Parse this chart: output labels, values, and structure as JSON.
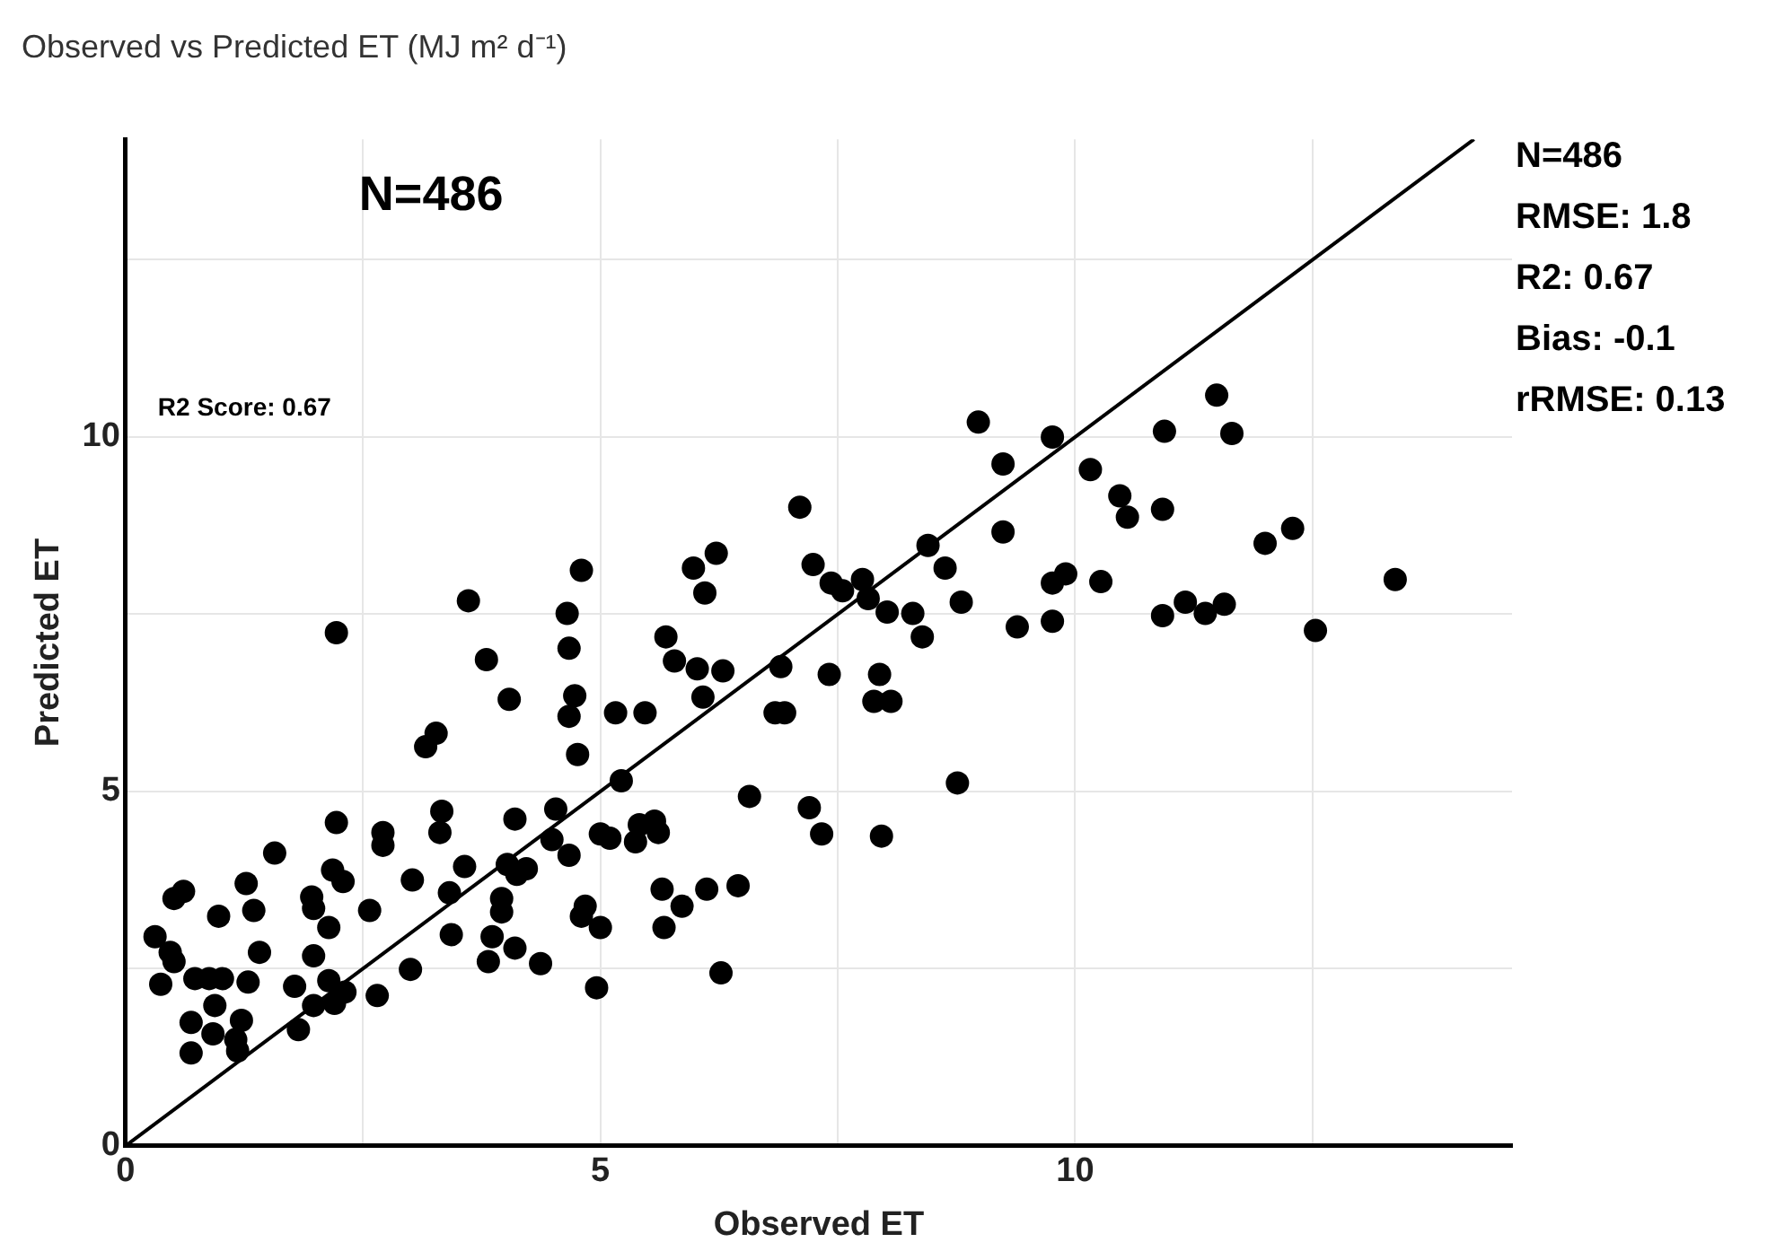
{
  "chart_data": {
    "type": "scatter",
    "title": "Observed vs Predicted ET (MJ m² d⁻¹)",
    "xlabel": "Observed ET",
    "ylabel": "Predicted ET",
    "xlim": [
      0,
      14.6
    ],
    "ylim": [
      0,
      14.2
    ],
    "xticks": [
      0,
      {
        "value": 2.5,
        "label": null
      },
      5,
      {
        "value": 7.5,
        "label": null
      },
      10,
      {
        "value": 12.5,
        "label": null
      }
    ],
    "yticks": [
      0,
      {
        "value": 2.5,
        "label": null
      },
      5,
      {
        "value": 7.5,
        "label": null
      },
      10,
      {
        "value": 12.5,
        "label": null
      }
    ],
    "grid": true,
    "legend": false,
    "annotations": [
      "N=486",
      "R2 Score: 0.67",
      "N=486",
      "RMSE: 1.8",
      "R2: 0.67",
      "Bias: -0.1",
      "rRMSE: 0.13"
    ],
    "series": [
      {
        "type": "scatter",
        "color": "#000000",
        "marker": "circle",
        "x": [
          4.8,
          3.61,
          4.65,
          2.22,
          4.67,
          3.8,
          4.04,
          4.73,
          4.67,
          3.27,
          3.16,
          4.76,
          2.22,
          2.71,
          2.71,
          3.33,
          3.31,
          4.1,
          4.53,
          4.49,
          1.57,
          0.61,
          0.51,
          1.27,
          2.18,
          2.29,
          3.02,
          3.57,
          4.02,
          4.22,
          4.12,
          4.67,
          0.98,
          1.35,
          1.96,
          1.98,
          2.14,
          2.57,
          3.41,
          3.96,
          3.96,
          4.8,
          0.31,
          0.47,
          0.51,
          1.41,
          1.98,
          3.43,
          3.86,
          4.1,
          3.82,
          4.37,
          3.0,
          0.37,
          0.73,
          0.88,
          1.02,
          1.29,
          1.78,
          2.14,
          2.31,
          2.2,
          2.65,
          1.98,
          0.94,
          0.69,
          1.22,
          0.92,
          1.16,
          1.82,
          0.69,
          1.18,
          5.98,
          6.22,
          6.1,
          7.24,
          7.43,
          7.55,
          7.76,
          7.82,
          8.02,
          8.29,
          8.39,
          8.45,
          8.63,
          8.8,
          9.39,
          9.24,
          5.69,
          5.78,
          6.02,
          6.29,
          6.08,
          6.9,
          7.41,
          7.94,
          7.88,
          8.06,
          6.84,
          6.94,
          5.16,
          5.47,
          5.22,
          6.57,
          7.2,
          8.76,
          7.33,
          7.96,
          5.0,
          5.1,
          5.41,
          5.57,
          5.37,
          5.61,
          5.65,
          5.86,
          6.12,
          6.45,
          5.67,
          4.84,
          5.0,
          6.27,
          4.96,
          7.1,
          8.98,
          9.24,
          9.76,
          10.16,
          10.94,
          11.49,
          11.65,
          10.47,
          10.55,
          10.92,
          12.0,
          12.29,
          13.37,
          9.76,
          9.9,
          10.27,
          9.76,
          10.92,
          11.16,
          11.37,
          11.57,
          12.53
        ],
        "values": [
          8.12,
          7.69,
          7.51,
          7.24,
          7.02,
          6.86,
          6.3,
          6.35,
          6.06,
          5.82,
          5.63,
          5.52,
          4.56,
          4.42,
          4.24,
          4.72,
          4.42,
          4.61,
          4.75,
          4.32,
          4.13,
          3.59,
          3.49,
          3.7,
          3.89,
          3.73,
          3.75,
          3.94,
          3.97,
          3.91,
          3.83,
          4.1,
          3.24,
          3.32,
          3.51,
          3.35,
          3.08,
          3.32,
          3.57,
          3.49,
          3.3,
          3.24,
          2.95,
          2.73,
          2.6,
          2.73,
          2.68,
          2.98,
          2.95,
          2.79,
          2.6,
          2.57,
          2.49,
          2.28,
          2.36,
          2.36,
          2.36,
          2.31,
          2.25,
          2.33,
          2.17,
          2.01,
          2.12,
          1.98,
          1.98,
          1.74,
          1.77,
          1.58,
          1.5,
          1.64,
          1.31,
          1.34,
          8.15,
          8.36,
          7.8,
          8.2,
          7.94,
          7.83,
          7.99,
          7.72,
          7.53,
          7.51,
          7.18,
          8.47,
          8.15,
          7.67,
          7.32,
          8.66,
          7.18,
          6.84,
          6.73,
          6.7,
          6.33,
          6.76,
          6.65,
          6.65,
          6.27,
          6.27,
          6.11,
          6.11,
          6.11,
          6.11,
          5.15,
          4.93,
          4.77,
          5.12,
          4.4,
          4.37,
          4.4,
          4.34,
          4.53,
          4.58,
          4.29,
          4.42,
          3.62,
          3.38,
          3.62,
          3.67,
          3.08,
          3.38,
          3.08,
          2.44,
          2.23,
          9.01,
          10.21,
          9.62,
          10.0,
          9.54,
          10.08,
          10.59,
          10.05,
          9.17,
          8.87,
          8.98,
          8.5,
          8.71,
          7.99,
          7.94,
          8.07,
          7.96,
          7.4,
          7.48,
          7.67,
          7.51,
          7.64,
          7.27
        ]
      },
      {
        "type": "line",
        "color": "#000000",
        "marker": "none",
        "line_style": "solid",
        "x": [
          0,
          14.2
        ],
        "values": [
          0,
          14.2
        ]
      }
    ]
  }
}
